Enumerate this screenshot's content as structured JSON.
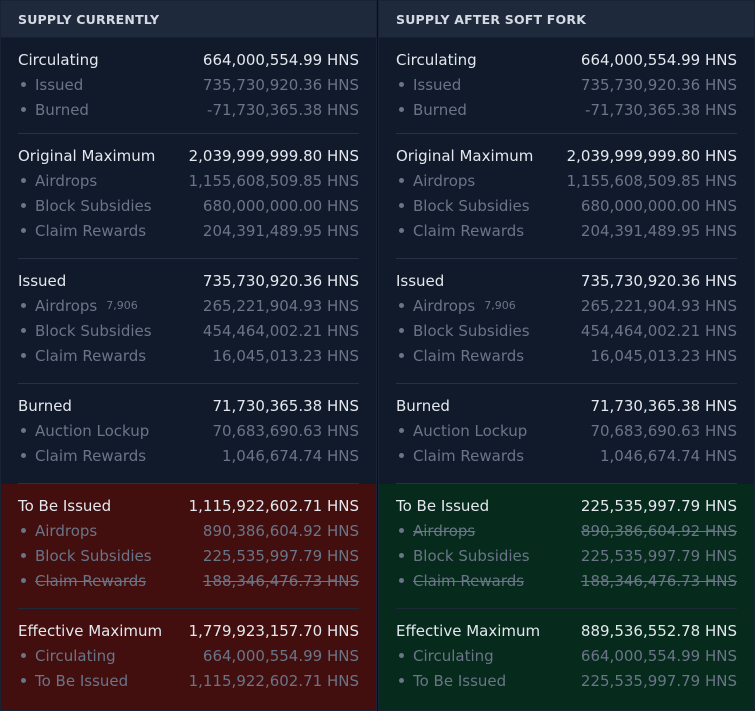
{
  "panels": [
    {
      "title": "SUPPLY CURRENTLY",
      "sections": {
        "circulating": {
          "label": "Circulating",
          "value": "664,000,554.99 HNS",
          "items": [
            {
              "label": "Issued",
              "value": "735,730,920.36 HNS"
            },
            {
              "label": "Burned",
              "value": "-71,730,365.38 HNS"
            }
          ]
        },
        "original_maximum": {
          "label": "Original Maximum",
          "value": "2,039,999,999.80 HNS",
          "items": [
            {
              "label": "Airdrops",
              "value": "1,155,608,509.85 HNS"
            },
            {
              "label": "Block Subsidies",
              "value": "680,000,000.00 HNS"
            },
            {
              "label": "Claim Rewards",
              "value": "204,391,489.95 HNS"
            }
          ]
        },
        "issued": {
          "label": "Issued",
          "value": "735,730,920.36 HNS",
          "items": [
            {
              "label": "Airdrops",
              "count": "7,906",
              "value": "265,221,904.93 HNS"
            },
            {
              "label": "Block Subsidies",
              "value": "454,464,002.21 HNS"
            },
            {
              "label": "Claim Rewards",
              "value": "16,045,013.23 HNS"
            }
          ]
        },
        "burned": {
          "label": "Burned",
          "value": "71,730,365.38 HNS",
          "items": [
            {
              "label": "Auction Lockup",
              "value": "70,683,690.63 HNS"
            },
            {
              "label": "Claim Rewards",
              "value": "1,046,674.74 HNS"
            }
          ]
        },
        "to_be_issued": {
          "label": "To Be Issued",
          "value": "1,115,922,602.71 HNS",
          "highlight": "#420e0e",
          "items": [
            {
              "label": "Airdrops",
              "value": "890,386,604.92 HNS",
              "struck": false
            },
            {
              "label": "Block Subsidies",
              "value": "225,535,997.79 HNS",
              "struck": false
            },
            {
              "label": "Claim Rewards",
              "value": "188,346,476.73 HNS",
              "struck": true
            }
          ]
        },
        "effective_maximum": {
          "label": "Effective Maximum",
          "value": "1,779,923,157.70 HNS",
          "highlight": "#420e0e",
          "items": [
            {
              "label": "Circulating",
              "value": "664,000,554.99 HNS"
            },
            {
              "label": "To Be Issued",
              "value": "1,115,922,602.71 HNS"
            }
          ]
        }
      }
    },
    {
      "title": "SUPPLY AFTER SOFT FORK",
      "sections": {
        "circulating": {
          "label": "Circulating",
          "value": "664,000,554.99 HNS",
          "items": [
            {
              "label": "Issued",
              "value": "735,730,920.36 HNS"
            },
            {
              "label": "Burned",
              "value": "-71,730,365.38 HNS"
            }
          ]
        },
        "original_maximum": {
          "label": "Original Maximum",
          "value": "2,039,999,999.80 HNS",
          "items": [
            {
              "label": "Airdrops",
              "value": "1,155,608,509.85 HNS"
            },
            {
              "label": "Block Subsidies",
              "value": "680,000,000.00 HNS"
            },
            {
              "label": "Claim Rewards",
              "value": "204,391,489.95 HNS"
            }
          ]
        },
        "issued": {
          "label": "Issued",
          "value": "735,730,920.36 HNS",
          "items": [
            {
              "label": "Airdrops",
              "count": "7,906",
              "value": "265,221,904.93 HNS"
            },
            {
              "label": "Block Subsidies",
              "value": "454,464,002.21 HNS"
            },
            {
              "label": "Claim Rewards",
              "value": "16,045,013.23 HNS"
            }
          ]
        },
        "burned": {
          "label": "Burned",
          "value": "71,730,365.38 HNS",
          "items": [
            {
              "label": "Auction Lockup",
              "value": "70,683,690.63 HNS"
            },
            {
              "label": "Claim Rewards",
              "value": "1,046,674.74 HNS"
            }
          ]
        },
        "to_be_issued": {
          "label": "To Be Issued",
          "value": "225,535,997.79 HNS",
          "highlight": "#062a1b",
          "items": [
            {
              "label": "Airdrops",
              "value": "890,386,604.92 HNS",
              "struck": true
            },
            {
              "label": "Block Subsidies",
              "value": "225,535,997.79 HNS",
              "struck": false
            },
            {
              "label": "Claim Rewards",
              "value": "188,346,476.73 HNS",
              "struck": true
            }
          ]
        },
        "effective_maximum": {
          "label": "Effective Maximum",
          "value": "889,536,552.78 HNS",
          "highlight": "#062a1b",
          "items": [
            {
              "label": "Circulating",
              "value": "664,000,554.99 HNS"
            },
            {
              "label": "To Be Issued",
              "value": "225,535,997.79 HNS"
            }
          ]
        }
      }
    }
  ]
}
